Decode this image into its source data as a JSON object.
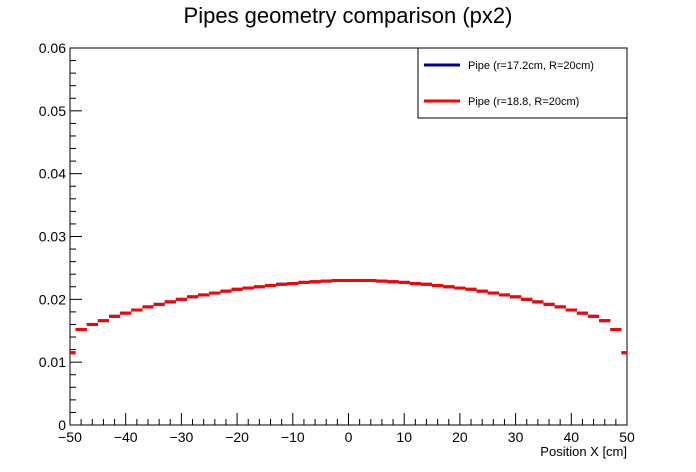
{
  "chart_data": {
    "type": "line",
    "title": "Pipes geometry comparison (px2)",
    "xlabel": "Position X [cm]",
    "ylabel": "",
    "xlim": [
      -50,
      50
    ],
    "ylim": [
      0,
      0.06
    ],
    "x_ticks": [
      "−50",
      "−40",
      "−30",
      "−20",
      "−10",
      "0",
      "10",
      "20",
      "30",
      "40",
      "50"
    ],
    "y_ticks": [
      "0",
      "0.01",
      "0.02",
      "0.03",
      "0.04",
      "0.05",
      "0.06"
    ],
    "grid": false,
    "legend_position": "top-right",
    "bin_width": 2,
    "series": [
      {
        "name": "Pipe (r=17.2cm, R=20cm)",
        "color": "#000099",
        "style": "histogram-step",
        "values": [
          0.0115,
          0.0152,
          0.016,
          0.0166,
          0.0173,
          0.0178,
          0.0183,
          0.0188,
          0.0192,
          0.0196,
          0.02,
          0.0204,
          0.0207,
          0.021,
          0.0213,
          0.0216,
          0.0218,
          0.022,
          0.0222,
          0.0224,
          0.0225,
          0.0227,
          0.0228,
          0.0229,
          0.023,
          0.023,
          0.023,
          0.023,
          0.0229,
          0.0228,
          0.0227,
          0.0225,
          0.0224,
          0.0222,
          0.022,
          0.0218,
          0.0216,
          0.0213,
          0.021,
          0.0207,
          0.0204,
          0.02,
          0.0196,
          0.0192,
          0.0188,
          0.0183,
          0.0178,
          0.0173,
          0.0166,
          0.0152,
          0.0115
        ]
      },
      {
        "name": "Pipe (r=18.8, R=20cm)",
        "color": "#ff0000",
        "style": "histogram-step",
        "values": [
          0.0115,
          0.0152,
          0.016,
          0.0166,
          0.0173,
          0.0178,
          0.0183,
          0.0188,
          0.0192,
          0.0196,
          0.02,
          0.0204,
          0.0207,
          0.021,
          0.0213,
          0.0216,
          0.0218,
          0.022,
          0.0222,
          0.0224,
          0.0225,
          0.0227,
          0.0228,
          0.0229,
          0.023,
          0.023,
          0.023,
          0.023,
          0.0229,
          0.0228,
          0.0227,
          0.0225,
          0.0224,
          0.0222,
          0.022,
          0.0218,
          0.0216,
          0.0213,
          0.021,
          0.0207,
          0.0204,
          0.02,
          0.0196,
          0.0192,
          0.0188,
          0.0183,
          0.0178,
          0.0173,
          0.0166,
          0.0152,
          0.0115
        ]
      }
    ]
  }
}
